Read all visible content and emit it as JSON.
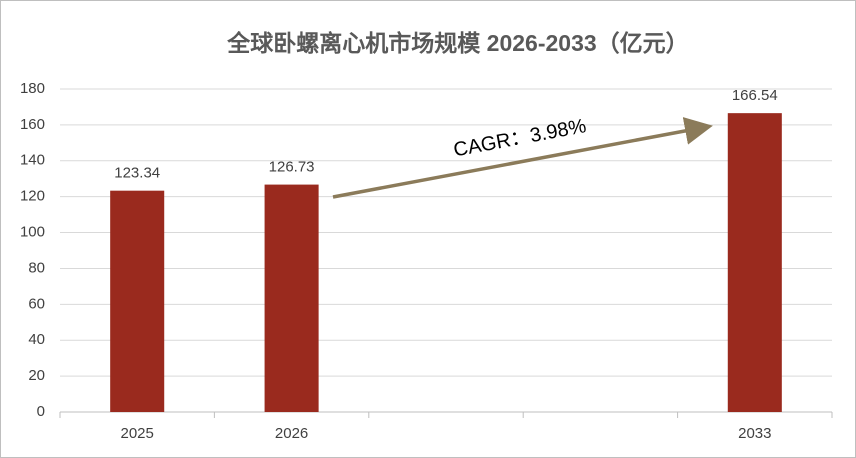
{
  "chart_data": {
    "type": "bar",
    "title": "全球卧螺离心机市场规模 2026-2033（亿元）",
    "categories": [
      "2025",
      "2026",
      null,
      null,
      "2033"
    ],
    "values": [
      123.34,
      126.73,
      null,
      null,
      166.54
    ],
    "color": "#9a2a1e",
    "ylim": [
      0,
      180
    ],
    "yticks": [
      0,
      20,
      40,
      60,
      80,
      100,
      120,
      140,
      160,
      180
    ],
    "grid": true,
    "annotation": "CAGR：3.98%"
  }
}
